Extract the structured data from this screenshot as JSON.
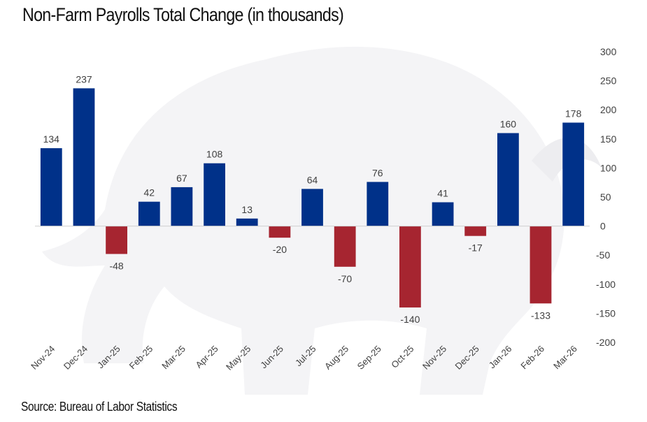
{
  "header": {
    "title": "Non-Farm Payrolls Total Change (in thousands)"
  },
  "footer": {
    "source": "Source: Bureau of Labor Statistics"
  },
  "colors": {
    "positive": "#003189",
    "negative": "#A62530",
    "zero_line": "#D0D0D0",
    "watermark": "#F4F4F6"
  },
  "chart_data": {
    "type": "bar",
    "title": "Non-Farm Payrolls Total Change (in thousands)",
    "xlabel": "",
    "ylabel": "",
    "categories": [
      "Nov-24",
      "Dec-24",
      "Jan-25",
      "Feb-25",
      "Mar-25",
      "Apr-25",
      "May-25",
      "Jun-25",
      "Jul-25",
      "Aug-25",
      "Sep-25",
      "Oct-25",
      "Nov-25",
      "Dec-25",
      "Jan-26",
      "Feb-26",
      "Mar-26"
    ],
    "values": [
      134,
      237,
      -48,
      42,
      67,
      108,
      13,
      -20,
      64,
      -70,
      76,
      -140,
      41,
      -17,
      160,
      -133,
      178
    ],
    "ylim": [
      -200,
      300
    ],
    "yticks": [
      300,
      250,
      200,
      150,
      100,
      50,
      0,
      -50,
      -100,
      -150,
      -200
    ],
    "y_axis_position": "right",
    "grid": false,
    "legend": "none",
    "data_labels": true,
    "color_rule": "positive values blue, negative values red",
    "source": "Source: Bureau of Labor Statistics"
  }
}
